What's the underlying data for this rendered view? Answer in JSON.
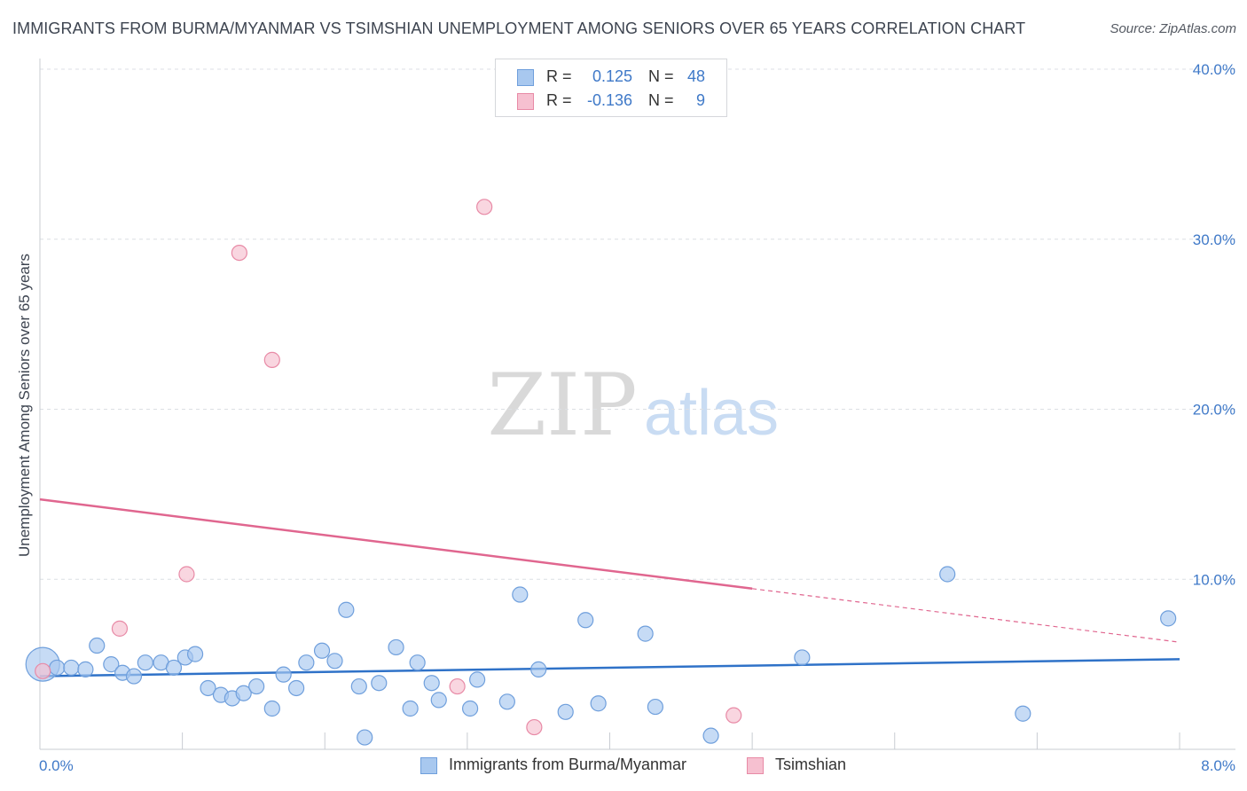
{
  "title": "IMMIGRANTS FROM BURMA/MYANMAR VS TSIMSHIAN UNEMPLOYMENT AMONG SENIORS OVER 65 YEARS CORRELATION CHART",
  "source": "Source: ZipAtlas.com",
  "watermark": {
    "zip": "ZIP",
    "atlas": "atlas"
  },
  "legend": {
    "r_label": "R =",
    "n_label": "N =",
    "rows": [
      {
        "r": "0.125",
        "n": "48"
      },
      {
        "r": "-0.136",
        "n": "9"
      }
    ]
  },
  "chart_data": {
    "type": "scatter",
    "title": "IMMIGRANTS FROM BURMA/MYANMAR VS TSIMSHIAN UNEMPLOYMENT AMONG SENIORS OVER 65 YEARS CORRELATION CHART",
    "xlabel": "",
    "ylabel": "Unemployment Among Seniors over 65 years",
    "xlim": [
      0,
      8
    ],
    "ylim": [
      0,
      40
    ],
    "x_tick_labels": [
      "0.0%",
      "8.0%"
    ],
    "y_ticks": [
      10,
      20,
      30,
      40
    ],
    "y_tick_labels": [
      "10.0%",
      "20.0%",
      "30.0%",
      "40.0%"
    ],
    "grid": true,
    "legend_position": "bottom-center",
    "series": [
      {
        "name": "Immigrants from Burma/Myanmar",
        "color": "#a8c8ef",
        "edge": "#6f9fdc",
        "line_color": "#2f72c8",
        "trend": {
          "x0": 0.0,
          "y0": 4.3,
          "x1": 8.0,
          "y1": 5.3,
          "solid_until": 8.0
        },
        "points": [
          {
            "x": 0.02,
            "y": 5.0,
            "big": true
          },
          {
            "x": 0.12,
            "y": 4.8
          },
          {
            "x": 0.22,
            "y": 4.8
          },
          {
            "x": 0.32,
            "y": 4.7
          },
          {
            "x": 0.4,
            "y": 6.1
          },
          {
            "x": 0.5,
            "y": 5.0
          },
          {
            "x": 0.58,
            "y": 4.5
          },
          {
            "x": 0.66,
            "y": 4.3
          },
          {
            "x": 0.74,
            "y": 5.1
          },
          {
            "x": 0.85,
            "y": 5.1
          },
          {
            "x": 0.94,
            "y": 4.8
          },
          {
            "x": 1.02,
            "y": 5.4
          },
          {
            "x": 1.09,
            "y": 5.6
          },
          {
            "x": 1.18,
            "y": 3.6
          },
          {
            "x": 1.27,
            "y": 3.2
          },
          {
            "x": 1.35,
            "y": 3.0
          },
          {
            "x": 1.43,
            "y": 3.3
          },
          {
            "x": 1.52,
            "y": 3.7
          },
          {
            "x": 1.63,
            "y": 2.4
          },
          {
            "x": 1.71,
            "y": 4.4
          },
          {
            "x": 1.8,
            "y": 3.6
          },
          {
            "x": 1.87,
            "y": 5.1
          },
          {
            "x": 1.98,
            "y": 5.8
          },
          {
            "x": 2.07,
            "y": 5.2
          },
          {
            "x": 2.15,
            "y": 8.2
          },
          {
            "x": 2.24,
            "y": 3.7
          },
          {
            "x": 2.28,
            "y": 0.7
          },
          {
            "x": 2.38,
            "y": 3.9
          },
          {
            "x": 2.5,
            "y": 6.0
          },
          {
            "x": 2.6,
            "y": 2.4
          },
          {
            "x": 2.65,
            "y": 5.1
          },
          {
            "x": 2.75,
            "y": 3.9
          },
          {
            "x": 2.8,
            "y": 2.9
          },
          {
            "x": 3.02,
            "y": 2.4
          },
          {
            "x": 3.07,
            "y": 4.1
          },
          {
            "x": 3.28,
            "y": 2.8
          },
          {
            "x": 3.37,
            "y": 9.1
          },
          {
            "x": 3.5,
            "y": 4.7
          },
          {
            "x": 3.69,
            "y": 2.2
          },
          {
            "x": 3.83,
            "y": 7.6
          },
          {
            "x": 3.92,
            "y": 2.7
          },
          {
            "x": 4.25,
            "y": 6.8
          },
          {
            "x": 4.32,
            "y": 2.5
          },
          {
            "x": 4.71,
            "y": 0.8
          },
          {
            "x": 5.35,
            "y": 5.4
          },
          {
            "x": 6.37,
            "y": 10.3
          },
          {
            "x": 6.9,
            "y": 2.1
          },
          {
            "x": 7.92,
            "y": 7.7
          }
        ]
      },
      {
        "name": "Tsimshian",
        "color": "#f6c0d0",
        "edge": "#e88aa6",
        "line_color": "#e0668f",
        "trend": {
          "x0": 0.0,
          "y0": 14.7,
          "x1": 8.0,
          "y1": 6.3,
          "solid_until": 5.0
        },
        "points": [
          {
            "x": 0.02,
            "y": 4.6
          },
          {
            "x": 0.56,
            "y": 7.1
          },
          {
            "x": 1.03,
            "y": 10.3
          },
          {
            "x": 1.4,
            "y": 29.2
          },
          {
            "x": 1.63,
            "y": 22.9
          },
          {
            "x": 2.93,
            "y": 3.7
          },
          {
            "x": 3.12,
            "y": 31.9
          },
          {
            "x": 3.47,
            "y": 1.3
          },
          {
            "x": 4.87,
            "y": 2.0
          }
        ]
      }
    ]
  }
}
